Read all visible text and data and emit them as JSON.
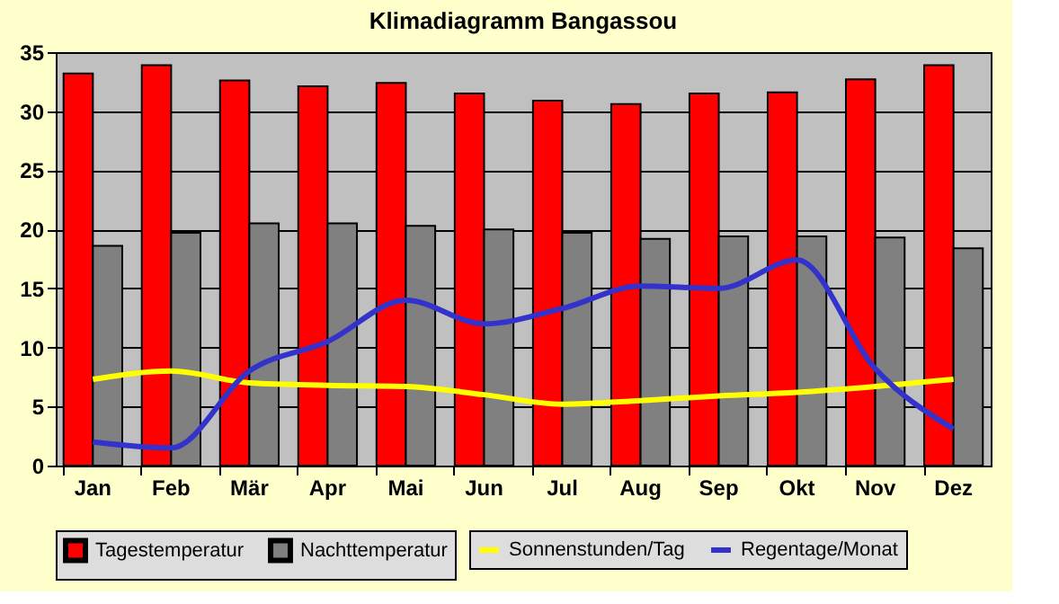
{
  "chart_data": {
    "type": "bar",
    "title": "Klimadiagramm Bangassou",
    "categories": [
      "Jan",
      "Feb",
      "Mär",
      "Apr",
      "Mai",
      "Jun",
      "Jul",
      "Aug",
      "Sep",
      "Okt",
      "Nov",
      "Dez"
    ],
    "series": [
      {
        "name": "Tagestemperatur",
        "color": "#ff0000",
        "values": [
          33.2,
          33.9,
          32.6,
          32.1,
          32.4,
          31.5,
          30.9,
          30.6,
          31.5,
          31.6,
          32.7,
          33.9
        ]
      },
      {
        "name": "Nachttemperatur",
        "color": "#808080",
        "values": [
          18.6,
          19.7,
          20.5,
          20.5,
          20.3,
          20.0,
          19.7,
          19.2,
          19.4,
          19.4,
          19.3,
          18.4
        ]
      },
      {
        "name": "Sonnenstunden/Tag",
        "type": "line",
        "color": "#ffff00",
        "values": [
          7.3,
          8.0,
          7.0,
          6.8,
          6.7,
          6.0,
          5.2,
          5.5,
          5.9,
          6.2,
          6.7,
          7.3
        ]
      },
      {
        "name": "Regentage/Monat",
        "type": "line",
        "color": "#3333cc",
        "values": [
          2.0,
          1.5,
          8.0,
          10.5,
          14.0,
          12.0,
          13.3,
          15.2,
          15.0,
          17.4,
          8.2,
          3.1
        ]
      }
    ],
    "ylim": [
      0,
      35
    ],
    "yticks": [
      0,
      5,
      10,
      15,
      20,
      25,
      30,
      35
    ],
    "grid": "y",
    "legend": "bottom"
  }
}
